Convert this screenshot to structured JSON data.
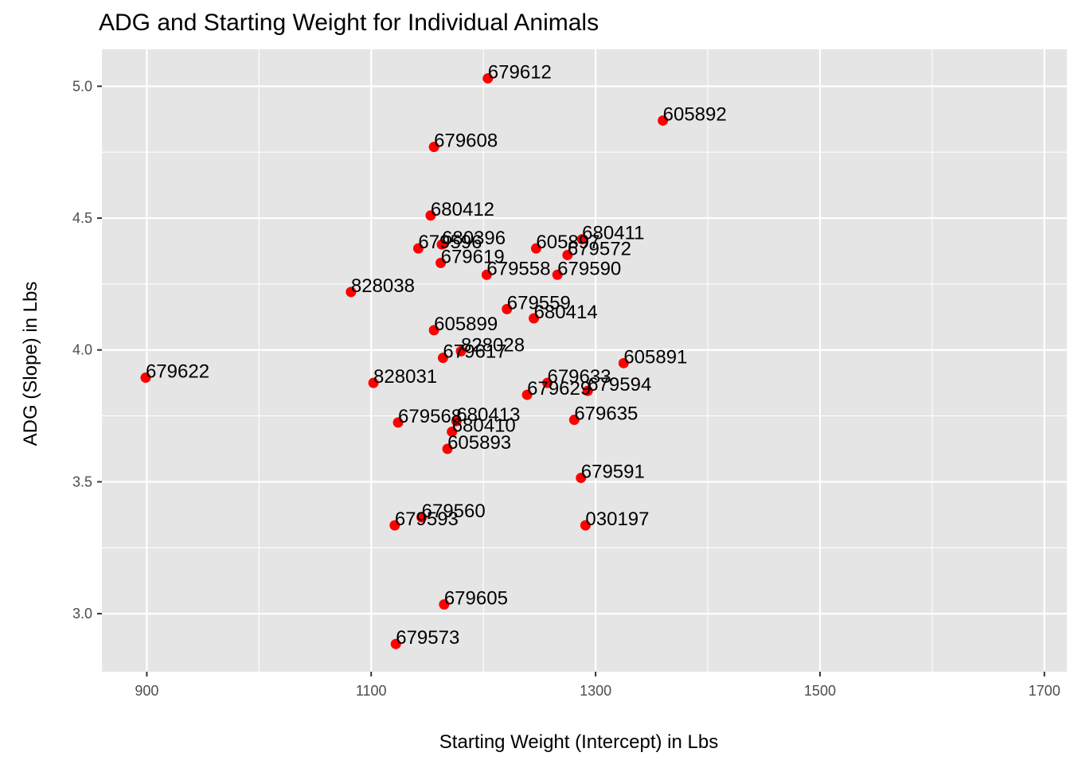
{
  "chart_data": {
    "type": "scatter",
    "title": "ADG and Starting Weight for Individual Animals",
    "xlabel": "Starting Weight (Intercept) in Lbs",
    "ylabel": "ADG (Slope) in Lbs",
    "xlim": [
      860,
      1720
    ],
    "ylim": [
      2.78,
      5.14
    ],
    "x_ticks": [
      900,
      1100,
      1300,
      1500,
      1700
    ],
    "x_minor": [
      1000,
      1200,
      1400,
      1600
    ],
    "y_ticks": [
      3.0,
      3.5,
      4.0,
      4.5,
      5.0
    ],
    "y_minor": [
      3.25,
      3.75,
      4.25,
      4.75
    ],
    "grid": true,
    "legend": "none",
    "colors": {
      "panel": "#e5e5e5",
      "grid": "#ffffff",
      "point": "#ff0000"
    },
    "points": [
      {
        "label": "679612",
        "x": 1204,
        "y": 5.03
      },
      {
        "label": "605892",
        "x": 1360,
        "y": 4.87
      },
      {
        "label": "679608",
        "x": 1156,
        "y": 4.77
      },
      {
        "label": "680412",
        "x": 1153,
        "y": 4.51
      },
      {
        "label": "679596",
        "x": 1142,
        "y": 4.385
      },
      {
        "label": "680396",
        "x": 1163,
        "y": 4.4
      },
      {
        "label": "605897",
        "x": 1247,
        "y": 4.385
      },
      {
        "label": "680411",
        "x": 1288,
        "y": 4.42
      },
      {
        "label": "679572",
        "x": 1275,
        "y": 4.36
      },
      {
        "label": "679619",
        "x": 1162,
        "y": 4.33
      },
      {
        "label": "679558",
        "x": 1203,
        "y": 4.285
      },
      {
        "label": "679590",
        "x": 1266,
        "y": 4.285
      },
      {
        "label": "828038",
        "x": 1082,
        "y": 4.22
      },
      {
        "label": "679559",
        "x": 1221,
        "y": 4.155
      },
      {
        "label": "680414",
        "x": 1245,
        "y": 4.12
      },
      {
        "label": "605899",
        "x": 1156,
        "y": 4.075
      },
      {
        "label": "828028",
        "x": 1180,
        "y": 3.995
      },
      {
        "label": "679617",
        "x": 1164,
        "y": 3.97
      },
      {
        "label": "605891",
        "x": 1325,
        "y": 3.95
      },
      {
        "label": "679622",
        "x": 899,
        "y": 3.895
      },
      {
        "label": "828031",
        "x": 1102,
        "y": 3.875
      },
      {
        "label": "679633",
        "x": 1257,
        "y": 3.875
      },
      {
        "label": "679629",
        "x": 1239,
        "y": 3.83
      },
      {
        "label": "679594",
        "x": 1293,
        "y": 3.845
      },
      {
        "label": "679635",
        "x": 1281,
        "y": 3.735
      },
      {
        "label": "679568",
        "x": 1124,
        "y": 3.725
      },
      {
        "label": "680413",
        "x": 1176,
        "y": 3.73
      },
      {
        "label": "680410",
        "x": 1172,
        "y": 3.69
      },
      {
        "label": "605893",
        "x": 1168,
        "y": 3.625
      },
      {
        "label": "679591",
        "x": 1287,
        "y": 3.515
      },
      {
        "label": "679560",
        "x": 1145,
        "y": 3.365
      },
      {
        "label": "679593",
        "x": 1121,
        "y": 3.335
      },
      {
        "label": "030197",
        "x": 1291,
        "y": 3.335
      },
      {
        "label": "679605",
        "x": 1165,
        "y": 3.035
      },
      {
        "label": "679573",
        "x": 1122,
        "y": 2.885
      }
    ]
  }
}
